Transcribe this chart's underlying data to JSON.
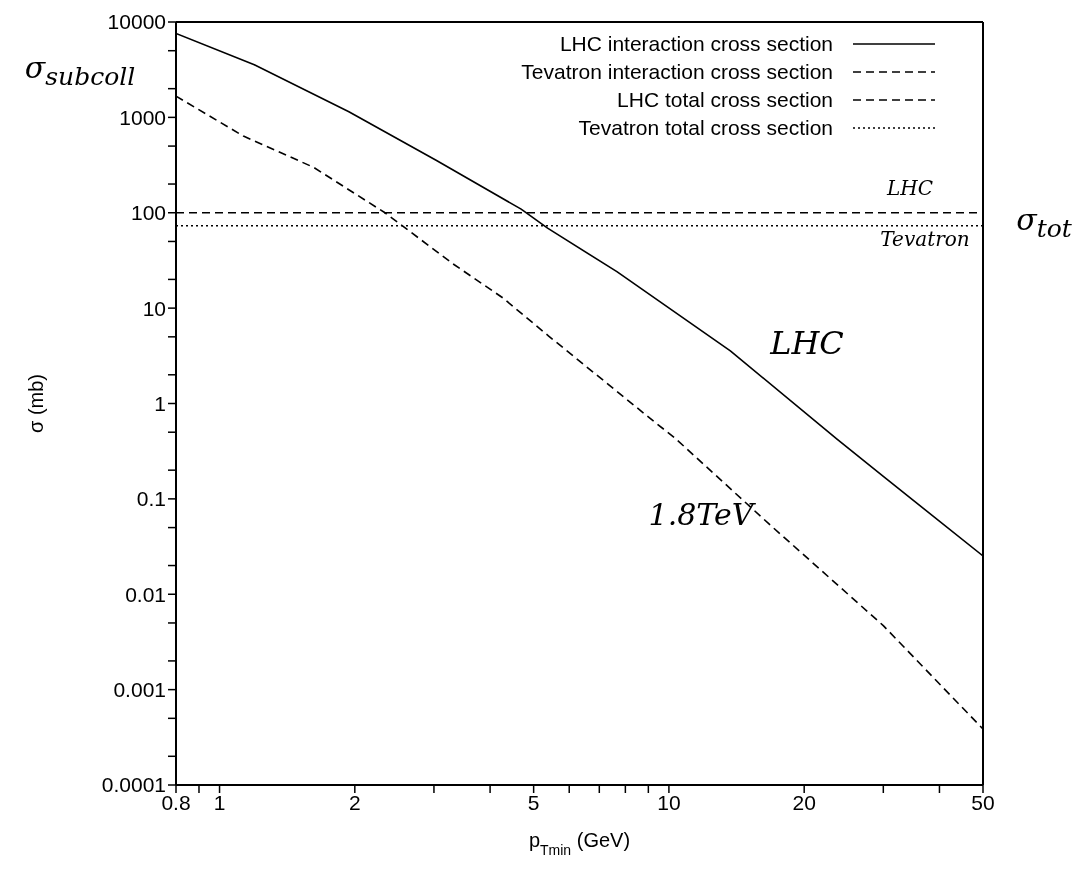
{
  "chart_data": {
    "type": "line",
    "xlabel": "p$_{Tmin}$ (GeV)",
    "ylabel": "σ (mb)",
    "log": "xy",
    "legend": "top right",
    "marker": "none",
    "xlim": [
      0.8,
      50
    ],
    "ylim": [
      0.0001,
      10000
    ],
    "xticks": [
      0.8,
      {
        "value": 0.9,
        "label": null
      },
      1,
      2,
      {
        "value": 3,
        "label": null
      },
      {
        "value": 4,
        "label": null
      },
      5,
      {
        "value": 6,
        "label": null
      },
      {
        "value": 7,
        "label": null
      },
      {
        "value": 8,
        "label": null
      },
      {
        "value": 9,
        "label": null
      },
      10,
      20,
      {
        "value": 30,
        "label": null
      },
      {
        "value": 40,
        "label": null
      },
      50
    ],
    "yticks": [
      0.0001,
      {
        "value": 0.0002,
        "label": null
      },
      {
        "value": 0.0005,
        "label": null
      },
      0.001,
      {
        "value": 0.002,
        "label": null
      },
      {
        "value": 0.005,
        "label": null
      },
      0.01,
      {
        "value": 0.02,
        "label": null
      },
      {
        "value": 0.05,
        "label": null
      },
      0.1,
      {
        "value": 0.2,
        "label": null
      },
      {
        "value": 0.5,
        "label": null
      },
      1,
      {
        "value": 2,
        "label": null
      },
      {
        "value": 5,
        "label": null
      },
      10,
      {
        "value": 20,
        "label": null
      },
      {
        "value": 50,
        "label": null
      },
      100,
      {
        "value": 200,
        "label": null
      },
      {
        "value": 500,
        "label": null
      },
      1000,
      {
        "value": 2000,
        "label": null
      },
      {
        "value": 5000,
        "label": null
      },
      10000
    ],
    "series": [
      {
        "name": "LHC interaction cross section",
        "color": "#000000",
        "line_style": "solid",
        "x": [
          0.8,
          1.195,
          1.94,
          3.04,
          4.69,
          5.37,
          7.66,
          13.7,
          23.7,
          30,
          50
        ],
        "values": [
          7580,
          3560,
          1145,
          353,
          109,
          69,
          24.1,
          3.57,
          0.42,
          0.172,
          0.0252
        ]
      },
      {
        "name": "Tevatron interaction cross section",
        "color": "#000000",
        "line_style": "dashed",
        "x": [
          0.8,
          1.13,
          1.62,
          2.33,
          3.33,
          4.27,
          5.4,
          9.31,
          10.27,
          16.7,
          30,
          50
        ],
        "values": [
          1670,
          637,
          299,
          100.5,
          28.5,
          12.8,
          5.1,
          0.635,
          0.442,
          0.0546,
          0.00469,
          0.000386
        ]
      },
      {
        "name": "LHC total cross section",
        "color": "#000000",
        "line_style": "dashed",
        "x": [
          0.8,
          50
        ],
        "values": [
          100,
          100
        ]
      },
      {
        "name": "Tevatron total cross section",
        "color": "#000000",
        "line_style": "dotted",
        "x": [
          0.8,
          50
        ],
        "values": [
          73,
          73
        ]
      }
    ],
    "annotations": [
      "σ$_{subcoll}$",
      "σ$_{tot}$",
      "LHC",
      "Tevatron",
      "LHC",
      "1.8TeV"
    ]
  }
}
